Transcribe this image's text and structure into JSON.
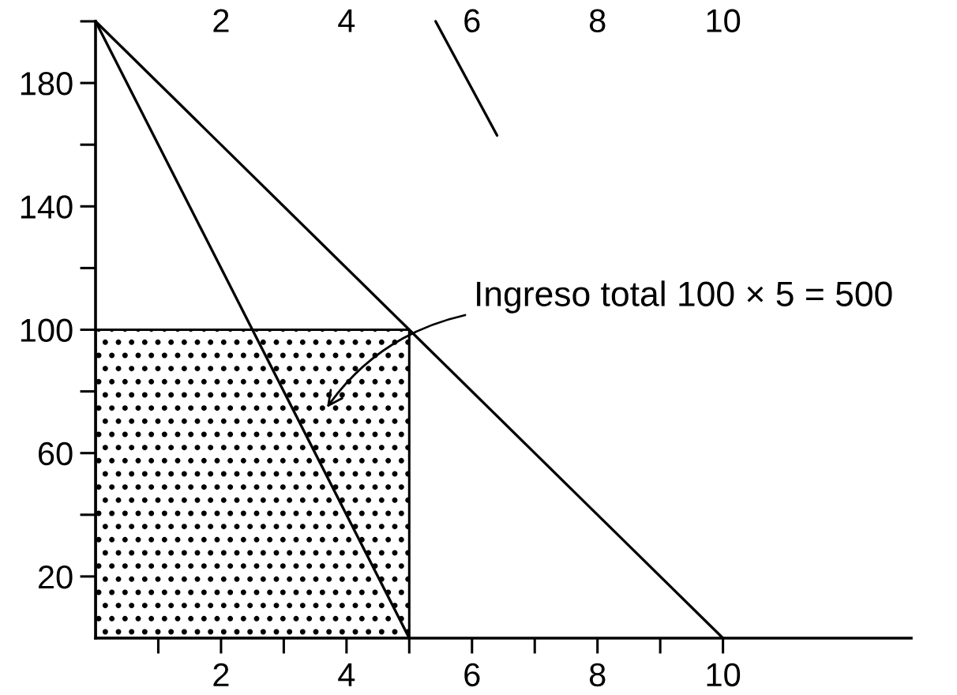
{
  "chart_data": {
    "type": "line",
    "xlim": [
      0,
      13
    ],
    "xticks": [
      {
        "value": 1,
        "label": null
      },
      2,
      {
        "value": 3,
        "label": null
      },
      4,
      {
        "value": 5,
        "label": null
      },
      6,
      {
        "value": 7,
        "label": null
      },
      8,
      {
        "value": 9,
        "label": null
      },
      10
    ],
    "ylim": [
      0,
      200
    ],
    "yticks": [
      20,
      {
        "value": 40,
        "label": null
      },
      60,
      {
        "value": 80,
        "label": null
      },
      100,
      {
        "value": 120,
        "label": null
      },
      140,
      {
        "value": 160,
        "label": null
      },
      180,
      {
        "value": 200,
        "label": null
      }
    ],
    "x2lim": [
      0,
      13
    ],
    "x2ticks": [
      2,
      4,
      6,
      8,
      10
    ],
    "series": [
      {
        "type": "area",
        "color": "#000000",
        "x": [
          0,
          5
        ],
        "values": [
          100,
          100
        ]
      },
      {
        "color": "#000000",
        "x": [
          0,
          10
        ],
        "values": [
          200,
          0
        ]
      },
      {
        "color": "#000000",
        "x": [
          0,
          5
        ],
        "values": [
          200,
          0
        ]
      },
      {
        "color": "#000000",
        "x": [
          5.42,
          6.4
        ],
        "values": [
          200,
          163
        ]
      }
    ],
    "annotations": [
      "Ingreso total 100 × 5 = 500"
    ],
    "grid": false,
    "marker": "none",
    "line_style": "solid"
  }
}
